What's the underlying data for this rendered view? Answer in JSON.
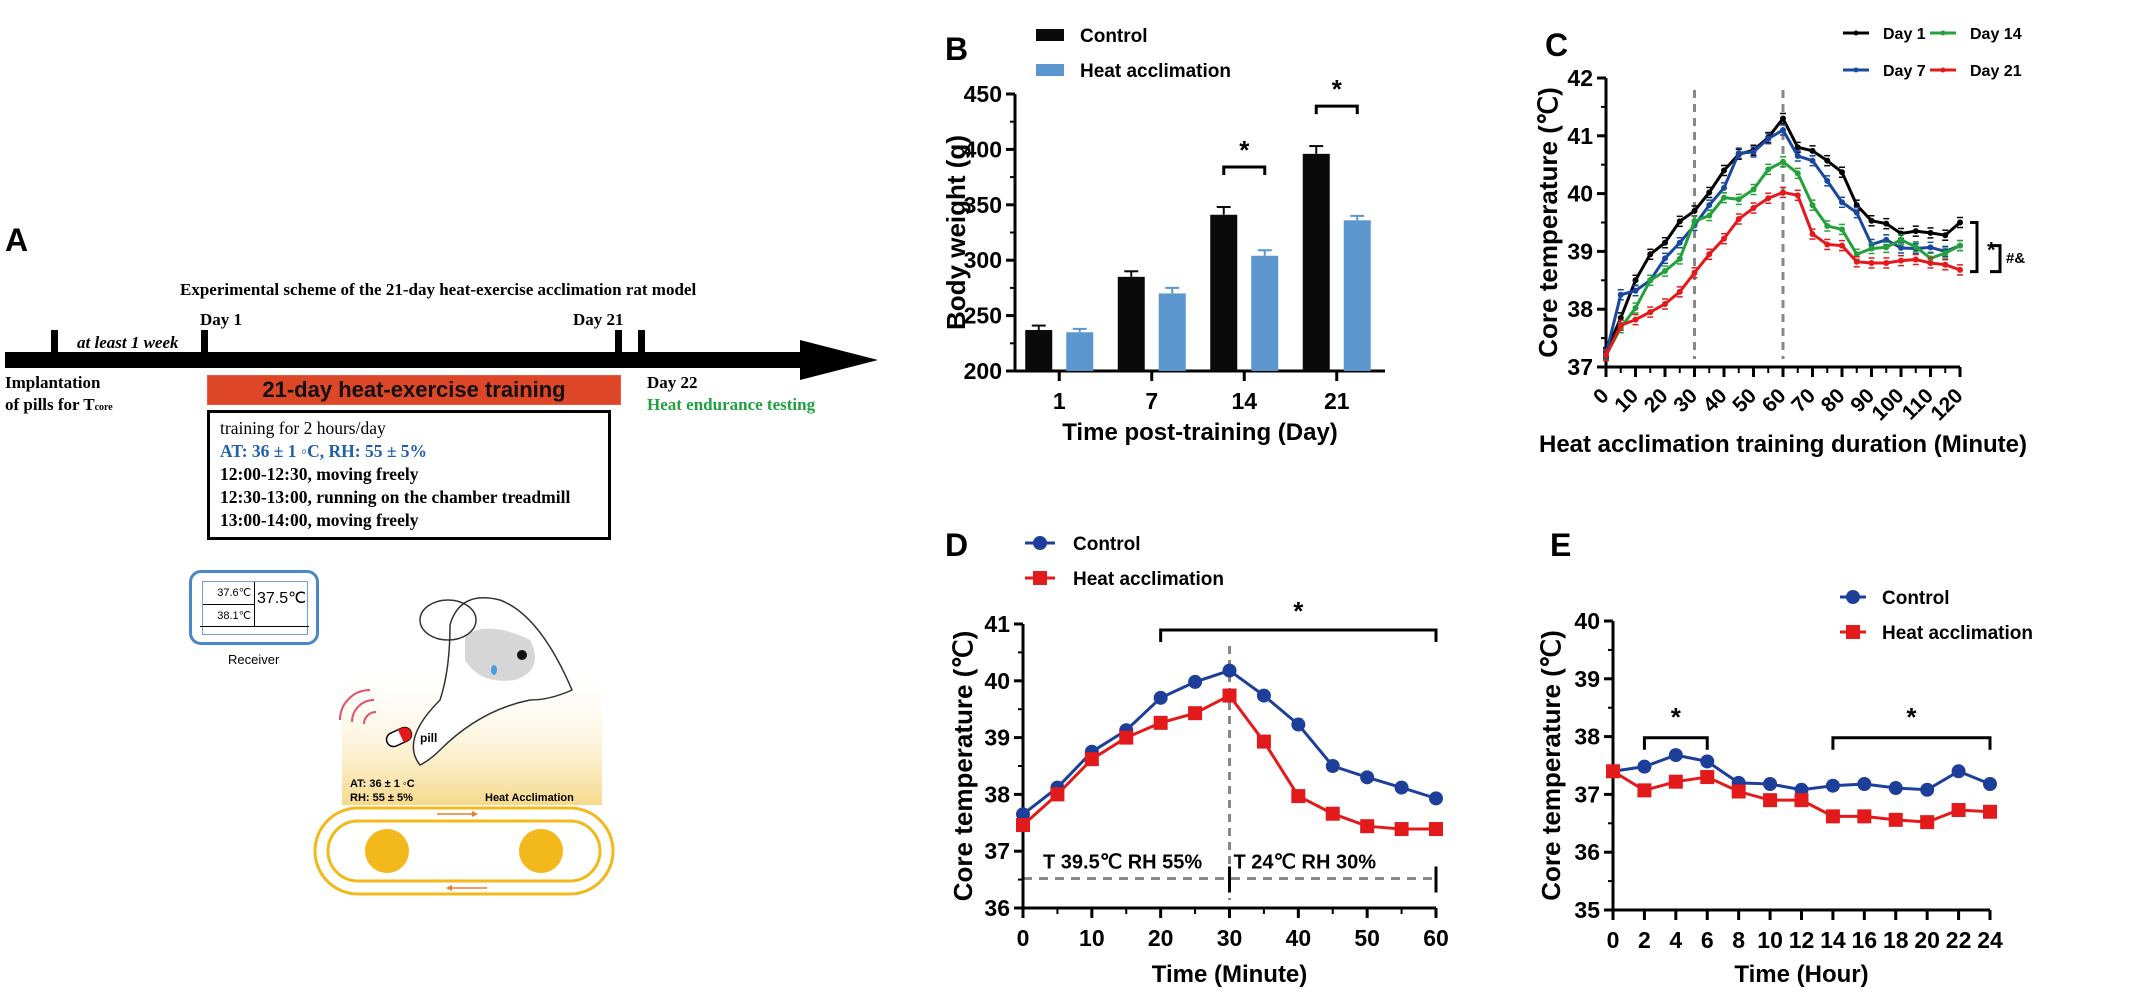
{
  "panels": {
    "A": {
      "letter": "A",
      "title": "Experimental scheme of the 21-day heat-exercise acclimation rat model",
      "timeline": {
        "interval_label": "at least 1 week",
        "day1_label": "Day 1",
        "day21_label": "Day 21",
        "day22_label": "Day 22",
        "heat_test_label": "Heat endurance testing",
        "implant_line1": "Implantation",
        "implant_line2": "of pills for T",
        "implant_sub": "core",
        "training_bar_label": "21-day heat-exercise training"
      },
      "protocol": {
        "line1": "training for 2 hours/day",
        "line2": "AT: 36 ± 1 ◦C, RH: 55 ± 5%",
        "line3": "12:00-12:30, moving freely",
        "line4": "12:30-13:00, running on the chamber treadmill",
        "line5": "13:00-14:00, moving freely"
      },
      "receiver": {
        "reading1": "37.6℃",
        "reading2": "38.1℃",
        "reading_main": "37.5℃",
        "label": "Receiver"
      },
      "illustration": {
        "pill_label": "pill",
        "at_label": "AT: 36 ± 1 ◦C",
        "rh_label": "RH: 55 ± 5%",
        "chamber_label": "Heat Acclimation"
      },
      "colors": {
        "training_bar": "#dd4626",
        "protocol_blue": "#1f5fae",
        "heat_test_green": "#21a040",
        "treadmill": "#f2b81c"
      }
    }
  },
  "chart_data": [
    {
      "id": "B",
      "letter": "B",
      "type": "bar",
      "title": "",
      "xlabel": "Time post-training (Day)",
      "ylabel": "Body weight (g)",
      "ylim": [
        200,
        450
      ],
      "yticks": [
        200,
        250,
        300,
        350,
        400,
        450
      ],
      "categories": [
        "1",
        "7",
        "14",
        "21"
      ],
      "series": [
        {
          "name": "Control",
          "color": "#0a0a0a",
          "values": [
            237,
            285,
            341,
            396
          ],
          "errors": [
            4,
            5,
            7,
            7
          ]
        },
        {
          "name": "Heat acclimation",
          "color": "#5b96cf",
          "values": [
            235,
            270,
            304,
            336
          ],
          "errors": [
            3,
            5,
            5,
            4
          ]
        }
      ],
      "significance": [
        {
          "category": "14",
          "label": "*"
        },
        {
          "category": "21",
          "label": "*"
        }
      ],
      "legend": "top-left",
      "grid": false
    },
    {
      "id": "C",
      "letter": "C",
      "type": "line",
      "xlabel": "Heat acclimation training duration (Minute)",
      "ylabel": "Core temperature (℃)",
      "xlim": [
        0,
        120
      ],
      "ylim": [
        37,
        42
      ],
      "xticks": [
        0,
        10,
        20,
        30,
        40,
        50,
        60,
        70,
        80,
        90,
        100,
        110,
        120
      ],
      "yticks": [
        37,
        38,
        39,
        40,
        41,
        42
      ],
      "x": [
        0,
        5,
        10,
        15,
        20,
        25,
        30,
        35,
        40,
        45,
        50,
        55,
        60,
        65,
        70,
        75,
        80,
        85,
        90,
        95,
        100,
        105,
        110,
        115,
        120
      ],
      "series": [
        {
          "name": "Day 1",
          "color": "#000000",
          "values": [
            37.25,
            37.85,
            38.5,
            38.95,
            39.15,
            39.52,
            39.7,
            40.02,
            40.4,
            40.68,
            40.75,
            40.97,
            41.3,
            40.8,
            40.74,
            40.57,
            40.37,
            39.8,
            39.53,
            39.48,
            39.31,
            39.35,
            39.32,
            39.28,
            39.5
          ]
        },
        {
          "name": "Day 7",
          "color": "#1a47a0",
          "values": [
            37.22,
            38.25,
            38.32,
            38.5,
            38.88,
            39.15,
            39.45,
            39.8,
            40.1,
            40.7,
            40.72,
            40.95,
            41.1,
            40.65,
            40.57,
            40.22,
            39.85,
            39.67,
            39.12,
            39.2,
            39.06,
            39.05,
            39.07,
            39.0,
            39.1
          ]
        },
        {
          "name": "Day 14",
          "color": "#24a13a",
          "values": [
            37.2,
            37.68,
            38.02,
            38.5,
            38.66,
            38.87,
            39.52,
            39.62,
            39.93,
            39.9,
            40.07,
            40.42,
            40.55,
            40.35,
            39.8,
            39.44,
            39.38,
            38.95,
            39.05,
            39.07,
            39.2,
            39.08,
            38.88,
            38.97,
            39.1
          ]
        },
        {
          "name": "Day 21",
          "color": "#e3191c",
          "values": [
            37.2,
            37.72,
            37.82,
            37.95,
            38.09,
            38.3,
            38.63,
            38.95,
            39.22,
            39.56,
            39.75,
            39.92,
            40.02,
            39.97,
            39.3,
            39.12,
            39.1,
            38.82,
            38.8,
            38.8,
            38.84,
            38.86,
            38.8,
            38.77,
            38.68
          ]
        }
      ],
      "reference_lines_x": [
        30,
        60
      ],
      "annotations": [
        "*",
        "#&"
      ],
      "legend": "top-right",
      "grid": false
    },
    {
      "id": "D",
      "letter": "D",
      "type": "line",
      "xlabel": "Time (Minute)",
      "ylabel": "Core temperature (℃)",
      "xlim": [
        0,
        60
      ],
      "ylim": [
        36,
        41
      ],
      "xticks": [
        0,
        10,
        20,
        30,
        40,
        50,
        60
      ],
      "yticks": [
        36,
        37,
        38,
        39,
        40,
        41
      ],
      "x": [
        0,
        5,
        10,
        15,
        20,
        25,
        30,
        35,
        40,
        45,
        50,
        55,
        60
      ],
      "series": [
        {
          "name": "Control",
          "color": "#1d3f9a",
          "marker": "circle",
          "values": [
            37.65,
            38.12,
            38.75,
            39.13,
            39.7,
            39.98,
            40.18,
            39.74,
            39.23,
            38.5,
            38.3,
            38.12,
            37.93
          ]
        },
        {
          "name": "Heat acclimation",
          "color": "#e31a1c",
          "marker": "square",
          "values": [
            37.46,
            38.0,
            38.62,
            39.0,
            39.26,
            39.43,
            39.74,
            38.93,
            37.97,
            37.66,
            37.44,
            37.39,
            37.39
          ]
        }
      ],
      "reference_lines_x": [
        30
      ],
      "conditions": [
        {
          "label": "T 39.5℃ RH 55%",
          "from": 0,
          "to": 30
        },
        {
          "label": "T 24℃ RH 30%",
          "from": 30,
          "to": 60
        }
      ],
      "significance": [
        {
          "from": 20,
          "to": 60,
          "label": "*"
        }
      ],
      "legend": "top-left",
      "grid": false
    },
    {
      "id": "E",
      "letter": "E",
      "type": "line",
      "xlabel": "Time (Hour)",
      "ylabel": "Core temperature (℃)",
      "xlim": [
        0,
        24
      ],
      "ylim": [
        35,
        40
      ],
      "xticks": [
        0,
        2,
        4,
        6,
        8,
        10,
        12,
        14,
        16,
        18,
        20,
        22,
        24
      ],
      "yticks": [
        35,
        36,
        37,
        38,
        39,
        40
      ],
      "x": [
        0,
        2,
        4,
        6,
        8,
        10,
        12,
        14,
        16,
        18,
        20,
        22,
        24
      ],
      "series": [
        {
          "name": "Control",
          "color": "#1d3f9a",
          "marker": "circle",
          "values": [
            37.4,
            37.48,
            37.68,
            37.57,
            37.2,
            37.18,
            37.08,
            37.15,
            37.18,
            37.11,
            37.08,
            37.4,
            37.18
          ]
        },
        {
          "name": "Heat acclimation",
          "color": "#e31a1c",
          "marker": "square",
          "values": [
            37.4,
            37.07,
            37.22,
            37.3,
            37.05,
            36.9,
            36.9,
            36.62,
            36.62,
            36.56,
            36.52,
            36.73,
            36.7
          ]
        }
      ],
      "significance": [
        {
          "from": 2,
          "to": 6,
          "label": "*"
        },
        {
          "from": 14,
          "to": 24,
          "label": "*"
        }
      ],
      "legend": "top-right",
      "grid": false
    }
  ]
}
